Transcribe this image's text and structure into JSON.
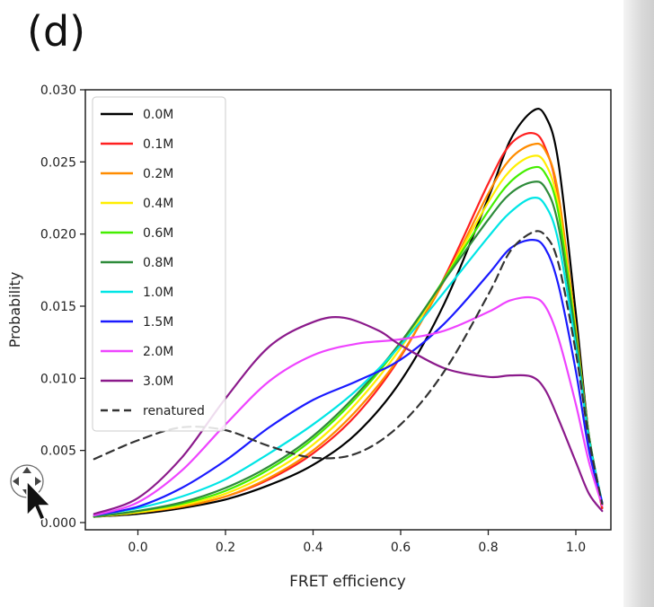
{
  "panel_label": "(d)",
  "chart_data": {
    "type": "line",
    "xlabel": "FRET efficiency",
    "ylabel": "Probability",
    "xlim": [
      -0.12,
      1.08
    ],
    "ylim": [
      -0.0005,
      0.03
    ],
    "xticks": [
      0.0,
      0.2,
      0.4,
      0.6,
      0.8,
      1.0
    ],
    "xtick_labels": [
      "0.0",
      "0.2",
      "0.4",
      "0.6",
      "0.8",
      "1.0"
    ],
    "yticks": [
      0.0,
      0.005,
      0.01,
      0.015,
      0.02,
      0.025,
      0.03
    ],
    "ytick_labels": [
      "0.000",
      "0.005",
      "0.010",
      "0.015",
      "0.020",
      "0.025",
      "0.030"
    ],
    "grid": false,
    "legend": "top-left",
    "series": [
      {
        "name": "0.0M",
        "color": "#000000",
        "dash": false,
        "x": [
          -0.1,
          0.0,
          0.1,
          0.2,
          0.3,
          0.4,
          0.5,
          0.6,
          0.7,
          0.8,
          0.85,
          0.9,
          0.93,
          0.96,
          1.0,
          1.03,
          1.06
        ],
        "y": [
          0.0004,
          0.0006,
          0.001,
          0.0016,
          0.0026,
          0.004,
          0.0062,
          0.0098,
          0.0152,
          0.0225,
          0.0265,
          0.0285,
          0.0282,
          0.025,
          0.0145,
          0.006,
          0.001
        ]
      },
      {
        "name": "0.1M",
        "color": "#ff2020",
        "dash": false,
        "x": [
          -0.1,
          0.0,
          0.1,
          0.2,
          0.3,
          0.4,
          0.5,
          0.6,
          0.7,
          0.8,
          0.85,
          0.9,
          0.93,
          0.96,
          1.0,
          1.03,
          1.06
        ],
        "y": [
          0.0004,
          0.0007,
          0.0011,
          0.0018,
          0.003,
          0.0048,
          0.0075,
          0.0115,
          0.017,
          0.0235,
          0.0262,
          0.027,
          0.026,
          0.0225,
          0.013,
          0.0055,
          0.001
        ]
      },
      {
        "name": "0.2M",
        "color": "#ff8c00",
        "dash": false,
        "x": [
          -0.1,
          0.0,
          0.1,
          0.2,
          0.3,
          0.4,
          0.5,
          0.6,
          0.7,
          0.8,
          0.85,
          0.9,
          0.93,
          0.96,
          1.0,
          1.03,
          1.06
        ],
        "y": [
          0.0004,
          0.0007,
          0.0011,
          0.0018,
          0.0031,
          0.005,
          0.0078,
          0.0116,
          0.0168,
          0.0228,
          0.0252,
          0.0262,
          0.0258,
          0.0228,
          0.0135,
          0.006,
          0.0012
        ]
      },
      {
        "name": "0.4M",
        "color": "#ffee00",
        "dash": false,
        "x": [
          -0.1,
          0.0,
          0.1,
          0.2,
          0.3,
          0.4,
          0.5,
          0.6,
          0.7,
          0.8,
          0.85,
          0.9,
          0.93,
          0.96,
          1.0,
          1.03,
          1.06
        ],
        "y": [
          0.0004,
          0.0007,
          0.0012,
          0.002,
          0.0034,
          0.0054,
          0.0083,
          0.0121,
          0.0169,
          0.0222,
          0.0244,
          0.0254,
          0.0249,
          0.022,
          0.0132,
          0.006,
          0.0012
        ]
      },
      {
        "name": "0.6M",
        "color": "#44ee00",
        "dash": false,
        "x": [
          -0.1,
          0.0,
          0.1,
          0.2,
          0.3,
          0.4,
          0.5,
          0.6,
          0.7,
          0.8,
          0.85,
          0.9,
          0.93,
          0.96,
          1.0,
          1.03,
          1.06
        ],
        "y": [
          0.0004,
          0.0008,
          0.0013,
          0.0022,
          0.0037,
          0.0058,
          0.0087,
          0.0124,
          0.0169,
          0.0216,
          0.0236,
          0.0246,
          0.0242,
          0.0215,
          0.013,
          0.006,
          0.0013
        ]
      },
      {
        "name": "0.8M",
        "color": "#2e8b3a",
        "dash": false,
        "x": [
          -0.1,
          0.0,
          0.1,
          0.2,
          0.3,
          0.4,
          0.5,
          0.6,
          0.7,
          0.8,
          0.85,
          0.9,
          0.93,
          0.96,
          1.0,
          1.03,
          1.06
        ],
        "y": [
          0.0004,
          0.0008,
          0.0014,
          0.0024,
          0.0039,
          0.006,
          0.0089,
          0.0125,
          0.0168,
          0.021,
          0.0228,
          0.0236,
          0.0232,
          0.0206,
          0.0128,
          0.006,
          0.0013
        ]
      },
      {
        "name": "1.0M",
        "color": "#00e5e5",
        "dash": false,
        "x": [
          -0.1,
          0.0,
          0.1,
          0.2,
          0.3,
          0.4,
          0.5,
          0.6,
          0.7,
          0.8,
          0.85,
          0.9,
          0.93,
          0.96,
          1.0,
          1.03,
          1.06
        ],
        "y": [
          0.0005,
          0.001,
          0.0018,
          0.003,
          0.0048,
          0.0068,
          0.0092,
          0.0123,
          0.016,
          0.0198,
          0.0215,
          0.0225,
          0.022,
          0.0195,
          0.0122,
          0.0058,
          0.0014
        ]
      },
      {
        "name": "1.5M",
        "color": "#1a1aff",
        "dash": false,
        "x": [
          -0.1,
          0.0,
          0.1,
          0.2,
          0.3,
          0.4,
          0.5,
          0.6,
          0.7,
          0.8,
          0.85,
          0.9,
          0.93,
          0.96,
          1.0,
          1.03,
          1.06
        ],
        "y": [
          0.0005,
          0.0011,
          0.0024,
          0.0043,
          0.0066,
          0.0085,
          0.0098,
          0.0113,
          0.0138,
          0.0172,
          0.019,
          0.0196,
          0.019,
          0.0165,
          0.0105,
          0.005,
          0.0014
        ]
      },
      {
        "name": "2.0M",
        "color": "#ee44ff",
        "dash": false,
        "x": [
          -0.1,
          0.0,
          0.1,
          0.2,
          0.3,
          0.4,
          0.5,
          0.6,
          0.7,
          0.8,
          0.85,
          0.9,
          0.93,
          0.96,
          1.0,
          1.03,
          1.06
        ],
        "y": [
          0.0005,
          0.0014,
          0.0036,
          0.0068,
          0.0098,
          0.0116,
          0.0124,
          0.0127,
          0.0133,
          0.0146,
          0.0154,
          0.0156,
          0.015,
          0.0128,
          0.0082,
          0.0042,
          0.0012
        ]
      },
      {
        "name": "3.0M",
        "color": "#8b1a8b",
        "dash": false,
        "x": [
          -0.1,
          0.0,
          0.1,
          0.2,
          0.3,
          0.4,
          0.47,
          0.55,
          0.6,
          0.7,
          0.8,
          0.85,
          0.9,
          0.93,
          0.96,
          1.0,
          1.03,
          1.06
        ],
        "y": [
          0.0006,
          0.0017,
          0.0045,
          0.0086,
          0.0122,
          0.0139,
          0.0142,
          0.0133,
          0.0123,
          0.0107,
          0.0101,
          0.0102,
          0.0101,
          0.0092,
          0.0072,
          0.0042,
          0.002,
          0.0008
        ]
      },
      {
        "name": "renatured",
        "color": "#333333",
        "dash": true,
        "x": [
          -0.1,
          0.0,
          0.1,
          0.2,
          0.3,
          0.4,
          0.5,
          0.6,
          0.7,
          0.8,
          0.85,
          0.9,
          0.93,
          0.96,
          1.0,
          1.03,
          1.06
        ],
        "y": [
          0.0044,
          0.0057,
          0.0066,
          0.0064,
          0.0053,
          0.0045,
          0.0048,
          0.0068,
          0.0105,
          0.0158,
          0.0188,
          0.0201,
          0.0199,
          0.018,
          0.0118,
          0.0058,
          0.0013
        ]
      }
    ]
  }
}
